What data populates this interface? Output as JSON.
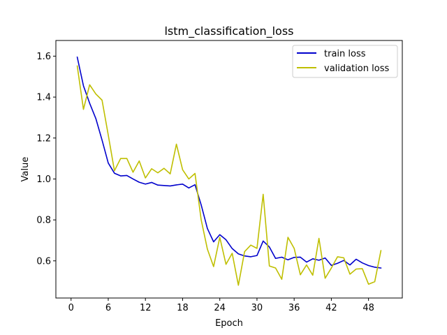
{
  "chart_data": {
    "type": "line",
    "title": "lstm_classification_loss",
    "xlabel": "Epoch",
    "ylabel": "Value",
    "xlim": [
      -2.45,
      53.45
    ],
    "ylim": [
      0.4185,
      1.6765
    ],
    "xticks": [
      0,
      6,
      12,
      18,
      24,
      30,
      36,
      42,
      48
    ],
    "yticks": [
      0.6,
      0.8,
      1.0,
      1.2,
      1.4,
      1.6
    ],
    "ytick_labels": [
      "0.6",
      "0.8",
      "1.0",
      "1.2",
      "1.4",
      "1.6"
    ],
    "grid": false,
    "legend_position": "top-right",
    "x": [
      1,
      2,
      3,
      4,
      5,
      6,
      7,
      8,
      9,
      10,
      11,
      12,
      13,
      14,
      15,
      16,
      17,
      18,
      19,
      20,
      21,
      22,
      23,
      24,
      25,
      26,
      27,
      28,
      29,
      30,
      31,
      32,
      33,
      34,
      35,
      36,
      37,
      38,
      39,
      40,
      41,
      42,
      43,
      44,
      45,
      46,
      47,
      48,
      49,
      50
    ],
    "series": [
      {
        "name": "train loss",
        "color": "#0000cc",
        "values": [
          1.595,
          1.455,
          1.37,
          1.295,
          1.19,
          1.078,
          1.028,
          1.015,
          1.017,
          1.0,
          0.984,
          0.975,
          0.983,
          0.97,
          0.968,
          0.966,
          0.971,
          0.975,
          0.956,
          0.972,
          0.873,
          0.758,
          0.693,
          0.728,
          0.703,
          0.66,
          0.634,
          0.624,
          0.62,
          0.626,
          0.697,
          0.668,
          0.612,
          0.618,
          0.605,
          0.617,
          0.618,
          0.594,
          0.61,
          0.603,
          0.614,
          0.578,
          0.588,
          0.602,
          0.58,
          0.608,
          0.59,
          0.577,
          0.569,
          0.565
        ]
      },
      {
        "name": "validation loss",
        "color": "#bfbf00",
        "values": [
          1.552,
          1.34,
          1.46,
          1.415,
          1.385,
          1.215,
          1.04,
          1.1,
          1.1,
          1.033,
          1.088,
          1.005,
          1.05,
          1.03,
          1.052,
          1.025,
          1.17,
          1.045,
          1.0,
          1.027,
          0.8,
          0.657,
          0.572,
          0.715,
          0.583,
          0.637,
          0.481,
          0.645,
          0.677,
          0.661,
          0.925,
          0.575,
          0.565,
          0.51,
          0.715,
          0.661,
          0.532,
          0.58,
          0.53,
          0.71,
          0.515,
          0.565,
          0.62,
          0.615,
          0.535,
          0.56,
          0.562,
          0.486,
          0.498,
          0.65
        ]
      }
    ]
  }
}
